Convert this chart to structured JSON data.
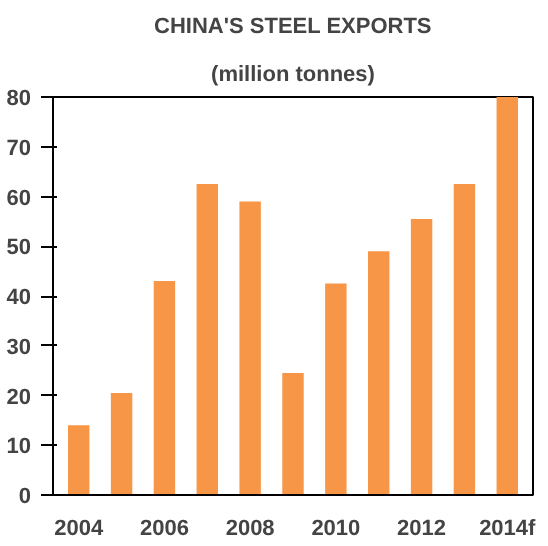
{
  "chart_data": {
    "type": "bar",
    "title": "CHINA'S STEEL EXPORTS",
    "subtitle": "(million tonnes)",
    "categories": [
      "2004",
      null,
      "2006",
      null,
      "2008",
      null,
      "2010",
      null,
      "2012",
      null,
      "2014f"
    ],
    "values": [
      14,
      20.5,
      43,
      62.5,
      59,
      24.5,
      42.5,
      49,
      55.5,
      62.5,
      80
    ],
    "color": "#f79646",
    "ylim": [
      0,
      80
    ],
    "yticks": [
      0,
      10,
      20,
      30,
      40,
      50,
      60,
      70,
      80
    ],
    "grid": false
  }
}
